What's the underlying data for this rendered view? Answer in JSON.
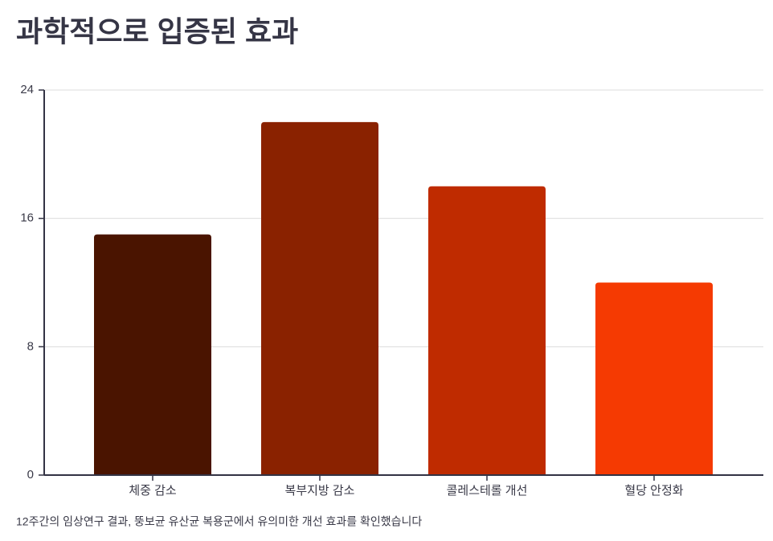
{
  "chart_data": {
    "type": "bar",
    "title": "과학적으로 입증된 효과",
    "categories": [
      "체중 감소",
      "복부지방 감소",
      "콜레스테롤 개선",
      "혈당 안정화"
    ],
    "values": [
      15,
      22,
      18,
      12
    ],
    "colors": [
      "#4a1400",
      "#8a2200",
      "#bf2b00",
      "#f53a02"
    ],
    "ylim": [
      0,
      24
    ],
    "yticks": [
      0,
      8,
      16,
      24
    ],
    "grid": true,
    "footnote": "12주간의 임상연구 결과, 뚱보균 유산균 복용군에서 유의미한 개선 효과를 확인했습니다"
  }
}
